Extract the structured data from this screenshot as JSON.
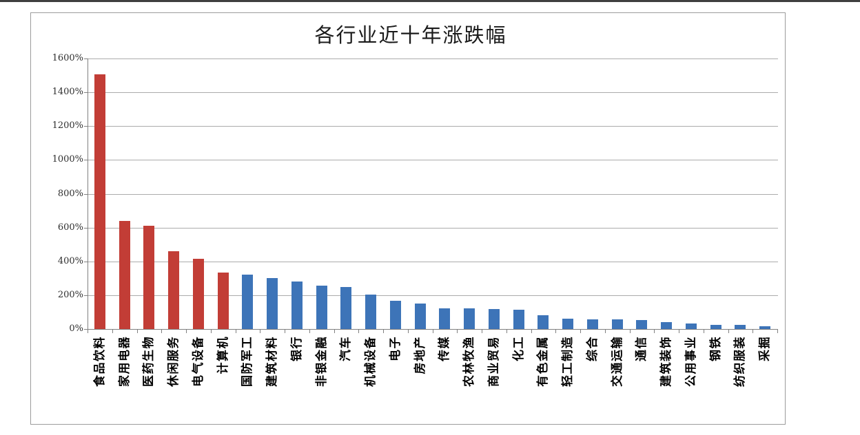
{
  "page": {
    "background": "#ffffff",
    "top_rule_color": "#3f3f3f",
    "frame_border_color": "#9b9b9b"
  },
  "chart_data": {
    "type": "bar",
    "title": "各行业近十年涨跌幅",
    "categories": [
      "食品饮料",
      "家用电器",
      "医药生物",
      "休闲服务",
      "电气设备",
      "计算机",
      "国防军工",
      "建筑材料",
      "银行",
      "非银金融",
      "汽车",
      "机械设备",
      "电子",
      "房地产",
      "传媒",
      "农林牧渔",
      "商业贸易",
      "化工",
      "有色金属",
      "轻工制造",
      "综合",
      "交通运输",
      "通信",
      "建筑装饰",
      "公用事业",
      "钢铁",
      "纺织服装",
      "采掘"
    ],
    "values": [
      1505,
      640,
      610,
      460,
      415,
      335,
      320,
      300,
      280,
      258,
      250,
      205,
      168,
      152,
      122,
      122,
      118,
      112,
      80,
      62,
      58,
      57,
      54,
      41,
      34,
      26,
      25,
      16
    ],
    "unit": "%",
    "xlabel": "",
    "ylabel": "",
    "ylim": [
      0,
      1600
    ],
    "y_tick_step": 200,
    "y_tick_labels": [
      "0%",
      "200%",
      "400%",
      "600%",
      "800%",
      "1000%",
      "1200%",
      "1400%",
      "1600%"
    ],
    "grid": true,
    "legend_position": "none",
    "colors": {
      "highlight": "#c23d36",
      "default": "#3d74b8",
      "highlight_count": 6,
      "gridline": "#ababab",
      "axis": "#7f7f7f"
    }
  }
}
